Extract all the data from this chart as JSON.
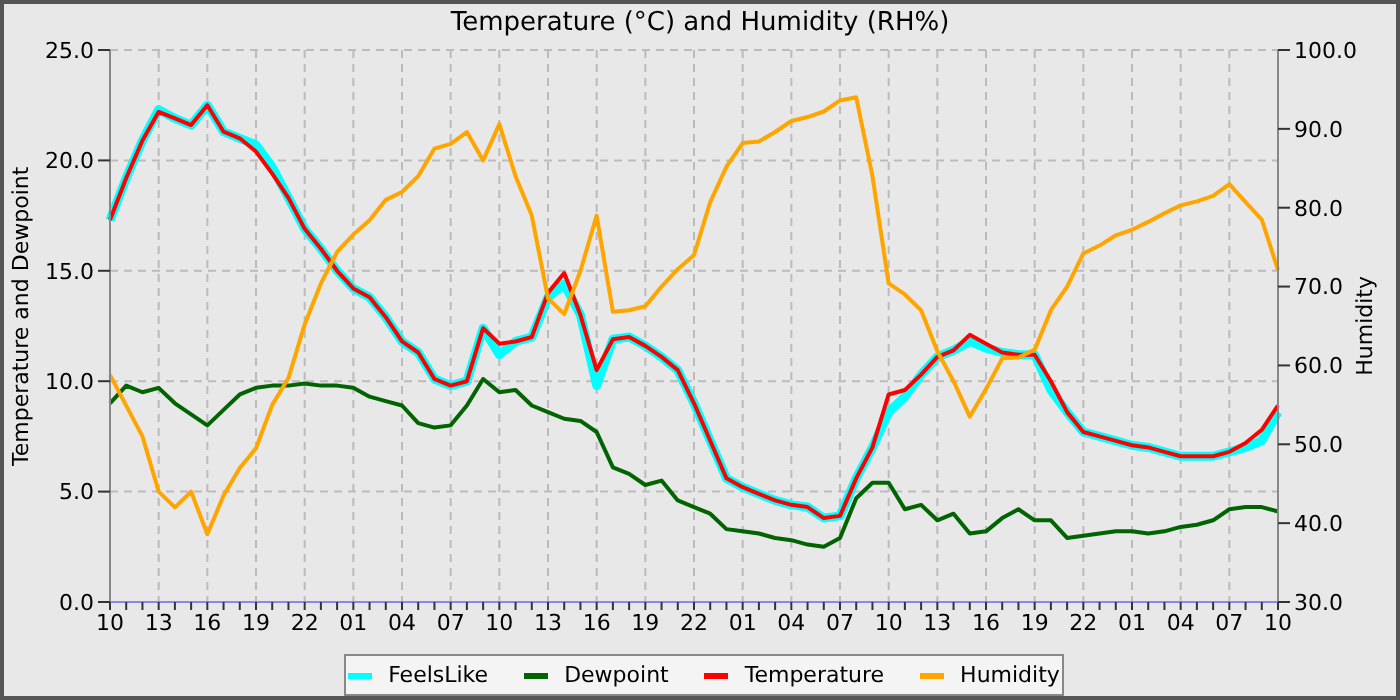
{
  "chart_data": {
    "type": "line",
    "title": "Temperature (°C) and Humidity (RH%)",
    "ylabel": "Temperature and Dewpoint",
    "y2label": "Humidity",
    "categories": [
      "10",
      null,
      null,
      "13",
      null,
      null,
      "16",
      null,
      null,
      "19",
      null,
      null,
      "22",
      null,
      null,
      "01",
      null,
      null,
      "04",
      null,
      null,
      "07",
      null,
      null,
      "10",
      null,
      null,
      "13",
      null,
      null,
      "16",
      null,
      null,
      "19",
      null,
      null,
      "22",
      null,
      null,
      "01",
      null,
      null,
      "04",
      null,
      null,
      "07",
      null,
      null,
      "10",
      null,
      null,
      "13",
      null,
      null,
      "16",
      null,
      null,
      "19",
      null,
      null,
      "22",
      null,
      null,
      "01",
      null,
      null,
      "04",
      null,
      null,
      "07",
      null,
      null,
      "10"
    ],
    "series": [
      {
        "name": "FeelsLike",
        "color": "#00ffff",
        "values": [
          17.3,
          19.2,
          20.9,
          22.3,
          21.9,
          21.6,
          22.5,
          21.3,
          21.0,
          20.7,
          19.7,
          18.3,
          16.9,
          16.0,
          15.0,
          14.2,
          13.8,
          12.9,
          11.8,
          11.3,
          10.1,
          9.8,
          10.0,
          12.4,
          11.2,
          11.8,
          12.0,
          13.8,
          14.4,
          13.0,
          9.8,
          11.9,
          12.0,
          11.6,
          11.1,
          10.5,
          9.0,
          7.3,
          5.6,
          5.2,
          4.9,
          4.6,
          4.4,
          4.3,
          3.8,
          3.9,
          5.6,
          7.0,
          8.6,
          9.3,
          10.3,
          11.1,
          11.4,
          11.8,
          11.5,
          11.3,
          11.2,
          11.2,
          9.6,
          8.6,
          7.7,
          7.5,
          7.3,
          7.1,
          7.0,
          6.8,
          6.6,
          6.6,
          6.6,
          6.8,
          7.0,
          7.3,
          8.6
        ]
      },
      {
        "name": "Dewpoint",
        "color": "#006400",
        "values": [
          9.0,
          9.8,
          9.5,
          9.7,
          9.0,
          8.5,
          8.0,
          8.7,
          9.4,
          9.7,
          9.8,
          9.8,
          9.9,
          9.8,
          9.8,
          9.7,
          9.3,
          9.1,
          8.9,
          8.1,
          7.9,
          8.0,
          8.9,
          10.1,
          9.5,
          9.6,
          8.9,
          8.6,
          8.3,
          8.2,
          7.7,
          6.1,
          5.8,
          5.3,
          5.5,
          4.6,
          4.3,
          4.0,
          3.3,
          3.2,
          3.1,
          2.9,
          2.8,
          2.6,
          2.5,
          2.9,
          4.7,
          5.4,
          5.4,
          4.2,
          4.4,
          3.7,
          4.0,
          3.1,
          3.2,
          3.8,
          4.2,
          3.7,
          3.7,
          2.9,
          3.0,
          3.1,
          3.2,
          3.2,
          3.1,
          3.2,
          3.4,
          3.5,
          3.7,
          4.2,
          4.3,
          4.3,
          4.1
        ]
      },
      {
        "name": "Temperature",
        "color": "#ff0000",
        "values": [
          17.3,
          19.2,
          20.9,
          22.2,
          21.9,
          21.6,
          22.5,
          21.3,
          21.0,
          20.4,
          19.4,
          18.3,
          16.9,
          16.0,
          15.0,
          14.2,
          13.8,
          12.9,
          11.8,
          11.3,
          10.1,
          9.8,
          10.0,
          12.4,
          11.7,
          11.8,
          12.0,
          14.0,
          14.9,
          13.0,
          10.5,
          11.9,
          12.0,
          11.6,
          11.1,
          10.5,
          9.0,
          7.3,
          5.6,
          5.2,
          4.9,
          4.6,
          4.4,
          4.3,
          3.8,
          3.9,
          5.6,
          7.0,
          9.4,
          9.6,
          10.3,
          11.1,
          11.4,
          12.1,
          11.7,
          11.3,
          11.2,
          11.2,
          10.0,
          8.6,
          7.7,
          7.5,
          7.3,
          7.1,
          7.0,
          6.8,
          6.6,
          6.6,
          6.6,
          6.8,
          7.2,
          7.8,
          8.9
        ]
      },
      {
        "name": "Humidity",
        "color": "#ffa500",
        "axis": "y2",
        "values": [
          58.8,
          54.9,
          51.0,
          44.0,
          42.0,
          44.0,
          38.6,
          43.5,
          47.0,
          49.5,
          55.0,
          58.4,
          65.2,
          70.4,
          74.4,
          76.6,
          78.4,
          81.0,
          82.0,
          84.0,
          87.5,
          88.1,
          89.6,
          86.0,
          90.6,
          84.0,
          79.0,
          68.5,
          66.5,
          72.0,
          79.0,
          66.8,
          67.0,
          67.5,
          70.0,
          72.2,
          74.0,
          80.7,
          85.2,
          88.2,
          88.4,
          89.6,
          91.0,
          91.5,
          92.2,
          93.6,
          94.0,
          84.0,
          70.4,
          69.0,
          67.0,
          61.8,
          58.0,
          53.5,
          57.0,
          60.9,
          61.0,
          62.0,
          67.0,
          70.0,
          74.2,
          75.2,
          76.5,
          77.2,
          78.2,
          79.3,
          80.3,
          80.8,
          81.5,
          83.0,
          80.7,
          78.5,
          72.1
        ]
      }
    ],
    "ylim": [
      0,
      25
    ],
    "yticks": [
      {
        "value": 0,
        "label": "0.0"
      },
      {
        "value": 5,
        "label": "5.0"
      },
      {
        "value": 10,
        "label": "10.0"
      },
      {
        "value": 15,
        "label": "15.0"
      },
      {
        "value": 20,
        "label": "20.0"
      },
      {
        "value": 25,
        "label": "25.0"
      }
    ],
    "y2lim": [
      30,
      100
    ],
    "y2ticks": [
      {
        "value": 30,
        "label": "30.0"
      },
      {
        "value": 40,
        "label": "40.0"
      },
      {
        "value": 50,
        "label": "50.0"
      },
      {
        "value": 60,
        "label": "60.0"
      },
      {
        "value": 70,
        "label": "70.0"
      },
      {
        "value": 80,
        "label": "80.0"
      },
      {
        "value": 90,
        "label": "90.0"
      },
      {
        "value": 100,
        "label": "100.0"
      }
    ],
    "grid": true,
    "legend": "bottom",
    "line_style": "solid",
    "marker": "none"
  }
}
